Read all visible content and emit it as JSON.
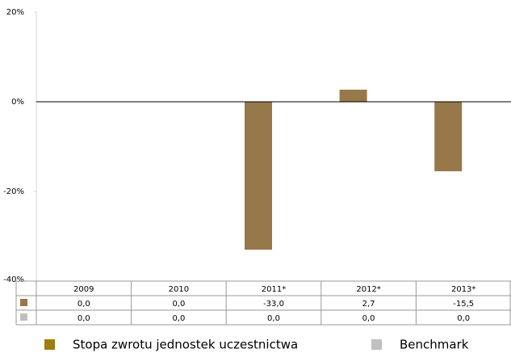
{
  "chart_data": {
    "type": "bar",
    "categories": [
      "2009",
      "2010",
      "2011*",
      "2012*",
      "2013*"
    ],
    "series": [
      {
        "name": "Stopa zwrotu jednostek uczestnictwa",
        "color": "#96784a",
        "legend_color": "#a07c0c",
        "values": [
          0,
          0,
          -33,
          2.7,
          -15.5
        ],
        "value_labels": [
          "0,0",
          "0,0",
          "-33,0",
          "2,7",
          "-15,5"
        ]
      },
      {
        "name": "Benchmark",
        "color": "#c0c0c0",
        "values": [
          0,
          0,
          0,
          0,
          0
        ],
        "value_labels": [
          "0,0",
          "0,0",
          "0,0",
          "0,0",
          "0,0"
        ]
      }
    ],
    "ylim": [
      -40,
      20
    ],
    "yticks": [
      {
        "value": -40,
        "label": "-40%"
      },
      {
        "value": -20,
        "label": "-20%"
      },
      {
        "value": 0,
        "label": "0%"
      },
      {
        "value": 20,
        "label": "20%"
      }
    ]
  }
}
